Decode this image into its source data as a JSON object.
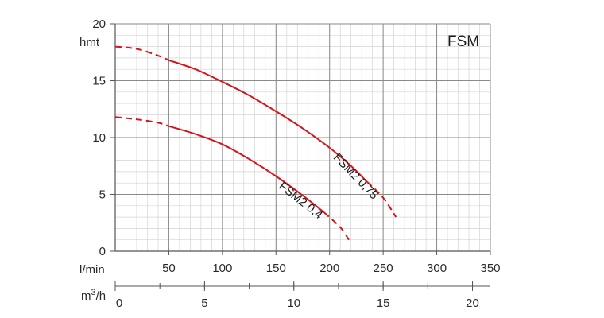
{
  "chart_data": {
    "type": "line",
    "title": "FSM",
    "ylabel": "hmt",
    "xlabel": "l/min",
    "x2label_prefix": "m",
    "x2label_sup": "3",
    "x2label_suffix": "/h",
    "xlim": [
      0,
      350
    ],
    "ylim": [
      0,
      20
    ],
    "x2lim": [
      0,
      21
    ],
    "x_major_ticks": [
      50,
      100,
      150,
      200,
      250,
      300,
      350
    ],
    "x_tick_labels": [
      "50",
      "100",
      "150",
      "200",
      "250",
      "300",
      "350"
    ],
    "x_minor_step": 10,
    "y_major_ticks": [
      0,
      5,
      10,
      15,
      20
    ],
    "y_tick_labels": [
      "0",
      "5",
      "10",
      "15",
      "20"
    ],
    "y_minor_step": 1,
    "x2_major_ticks": [
      0,
      5,
      10,
      15,
      20
    ],
    "x2_tick_labels": [
      "0",
      "5",
      "10",
      "15",
      "20"
    ],
    "x2_minor_step": 2.5,
    "grid": true,
    "curve_color": "#d7141a",
    "series": [
      {
        "name": "FSM2 0,75",
        "dashed_start": [
          [
            0,
            18.0
          ],
          [
            20,
            17.8
          ],
          [
            40,
            17.2
          ],
          [
            50,
            16.8
          ]
        ],
        "solid": [
          [
            50,
            16.8
          ],
          [
            75,
            16.0
          ],
          [
            100,
            14.9
          ],
          [
            125,
            13.7
          ],
          [
            150,
            12.3
          ],
          [
            175,
            10.8
          ],
          [
            200,
            9.1
          ],
          [
            220,
            7.5
          ],
          [
            235,
            6.1
          ]
        ],
        "dashed_end": [
          [
            235,
            6.1
          ],
          [
            250,
            4.7
          ],
          [
            262,
            3.0
          ]
        ]
      },
      {
        "name": "FSM2 0,4",
        "dashed_start": [
          [
            0,
            11.8
          ],
          [
            20,
            11.6
          ],
          [
            40,
            11.3
          ],
          [
            50,
            11.0
          ]
        ],
        "solid": [
          [
            50,
            11.0
          ],
          [
            75,
            10.3
          ],
          [
            100,
            9.4
          ],
          [
            125,
            8.1
          ],
          [
            150,
            6.6
          ],
          [
            175,
            4.9
          ],
          [
            195,
            3.4
          ]
        ],
        "dashed_end": [
          [
            195,
            3.4
          ],
          [
            210,
            2.1
          ],
          [
            218,
            1.0
          ]
        ]
      }
    ]
  }
}
